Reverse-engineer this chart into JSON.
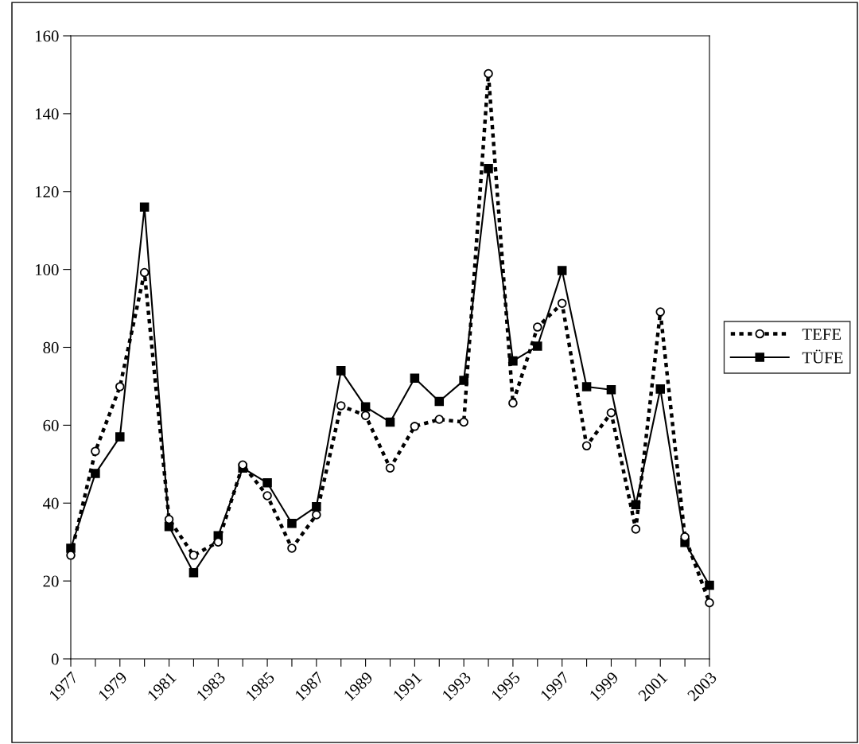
{
  "chart_data": {
    "type": "line",
    "categories": [
      "1977",
      null,
      "1979",
      null,
      "1981",
      null,
      "1983",
      null,
      "1985",
      null,
      "1987",
      null,
      "1989",
      null,
      "1991",
      null,
      "1993",
      null,
      "1995",
      null,
      "1997",
      null,
      "1999",
      null,
      "2001",
      null,
      "2003"
    ],
    "series": [
      {
        "name": "TEFE",
        "color": "#000000",
        "marker": "circle",
        "line_style": "dotted",
        "values": [
          26.6,
          53.3,
          69.9,
          99.2,
          35.8,
          26.6,
          30.0,
          49.8,
          41.9,
          28.4,
          37.0,
          65.0,
          62.5,
          49.0,
          59.7,
          61.5,
          60.8,
          150.3,
          65.7,
          85.2,
          91.3,
          54.7,
          63.2,
          33.3,
          89.1,
          31.3,
          14.4
        ]
      },
      {
        "name": "TÜFE",
        "color": "#000000",
        "marker": "square",
        "line_style": "solid",
        "values": [
          28.4,
          47.6,
          57.0,
          116.0,
          34.0,
          22.1,
          31.6,
          49.0,
          45.2,
          34.8,
          39.1,
          74.0,
          64.7,
          60.8,
          72.1,
          66.1,
          71.5,
          125.9,
          76.5,
          80.3,
          99.7,
          69.9,
          69.1,
          39.6,
          69.3,
          29.9,
          18.9
        ]
      }
    ],
    "ylim": [
      0,
      160
    ],
    "yticks": [
      0,
      20,
      40,
      60,
      80,
      100,
      120,
      140,
      160
    ],
    "grid": false,
    "legend": "right"
  }
}
